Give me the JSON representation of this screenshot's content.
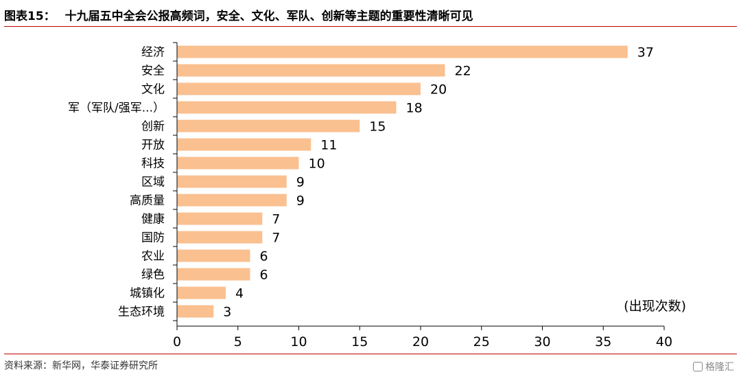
{
  "header": {
    "figure_label": "图表15：",
    "title": "十九届五中全会公报高频词，安全、文化、军队、创新等主题的重要性清晰可见"
  },
  "footer": {
    "source": "资料来源：新华网，华泰证券研究所",
    "watermark": "格隆汇"
  },
  "chart_data": {
    "type": "bar",
    "orientation": "horizontal",
    "categories": [
      "经济",
      "安全",
      "文化",
      "军（军队/强军...）",
      "创新",
      "开放",
      "科技",
      "区域",
      "高质量",
      "健康",
      "国防",
      "农业",
      "绿色",
      "城镇化",
      "生态环境"
    ],
    "values": [
      37,
      22,
      20,
      18,
      15,
      11,
      10,
      9,
      9,
      7,
      7,
      6,
      6,
      4,
      3
    ],
    "xlim": [
      0,
      40
    ],
    "xticks": [
      0,
      5,
      10,
      15,
      20,
      25,
      30,
      35,
      40
    ],
    "unit_label": "(出现次数)",
    "bar_color": "#fac090",
    "grid": false,
    "data_labels": true
  }
}
